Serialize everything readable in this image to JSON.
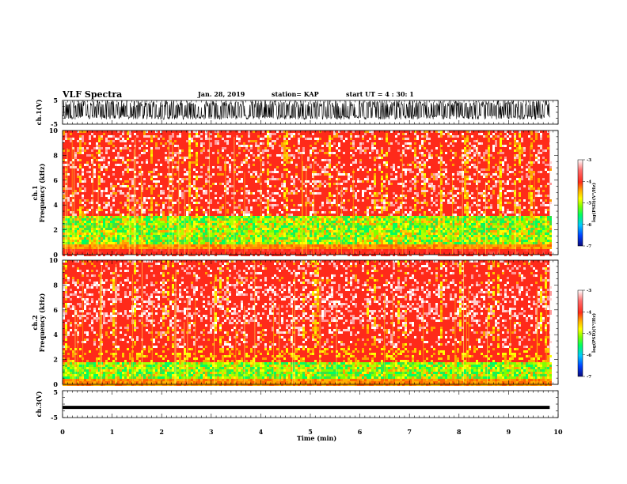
{
  "header": {
    "title": "VLF Spectra",
    "date": "Jan. 28, 2019",
    "station": "station= KAP",
    "start": "start UT =  4 : 30: 1"
  },
  "colors": {
    "spectrogram_scale": [
      "#0a0a7a",
      "#0040ff",
      "#00c8ff",
      "#00ff60",
      "#7fff00",
      "#ffff00",
      "#ffb000",
      "#ff2a1a",
      "#ff6f6f",
      "#ffffff"
    ],
    "waveform": "#000000"
  },
  "chart_data": [
    {
      "type": "line",
      "name": "ch1-waveform",
      "ylabel": "ch.1(V)",
      "yticks": [
        "5",
        "-5"
      ],
      "ylim": [
        -5,
        5
      ],
      "xlim": [
        0,
        10
      ],
      "data_end_min": 9.83,
      "description_value": "dense waveform filling roughly -3 to +5 V"
    },
    {
      "type": "heatmap",
      "name": "ch1-spectrogram",
      "ylabel": "ch.1\nFrequency (kHz)",
      "ylabel_lines": [
        "ch.1",
        "Frequency (kHz)"
      ],
      "yticks": [
        "0",
        "2",
        "4",
        "6",
        "8",
        "10"
      ],
      "ylim": [
        0,
        10
      ],
      "xlim": [
        0,
        10
      ],
      "data_end_min": 9.83,
      "bands": [
        {
          "from_khz": 0,
          "to_khz": 0.4,
          "level": "red"
        },
        {
          "from_khz": 0.4,
          "to_khz": 0.9,
          "level": "orange-yellow lines"
        },
        {
          "from_khz": 0.9,
          "to_khz": 3.2,
          "level": "green-yellow"
        },
        {
          "from_khz": 3.2,
          "to_khz": 10,
          "level": "red with white speckle"
        }
      ],
      "colorbar": {
        "ticks": [
          "-3",
          "-4",
          "-5",
          "-6",
          "-7"
        ],
        "label": "log(PSD)(V²/Hz)",
        "range": [
          -7,
          -3
        ]
      }
    },
    {
      "type": "heatmap",
      "name": "ch2-spectrogram",
      "ylabel_lines": [
        "ch.2",
        "Frequency (kHz)"
      ],
      "yticks": [
        "0",
        "2",
        "4",
        "6",
        "8",
        "10"
      ],
      "ylim": [
        0,
        10
      ],
      "xlim": [
        0,
        10
      ],
      "data_end_min": 9.83,
      "bands": [
        {
          "from_khz": 0,
          "to_khz": 0.5,
          "level": "orange"
        },
        {
          "from_khz": 0.5,
          "to_khz": 1.8,
          "level": "green"
        },
        {
          "from_khz": 1.8,
          "to_khz": 3.0,
          "level": "red-yellow"
        },
        {
          "from_khz": 3.0,
          "to_khz": 10,
          "level": "red with white speckle"
        }
      ],
      "colorbar": {
        "ticks": [
          "-3",
          "-4",
          "-5",
          "-6",
          "-7"
        ],
        "label": "log(PSD)(V²/Hz)",
        "range": [
          -7,
          -3
        ]
      }
    },
    {
      "type": "line",
      "name": "ch3-waveform",
      "ylabel": "ch.3(V)",
      "yticks": [
        "5",
        "-5"
      ],
      "ylim": [
        -5,
        5
      ],
      "xlim": [
        0,
        10
      ],
      "data_end_min": 9.83,
      "level_v": -1.2
    }
  ],
  "xaxis": {
    "label": "Time (min)",
    "ticks": [
      "0",
      "1",
      "2",
      "3",
      "4",
      "5",
      "6",
      "7",
      "8",
      "9",
      "10"
    ]
  }
}
